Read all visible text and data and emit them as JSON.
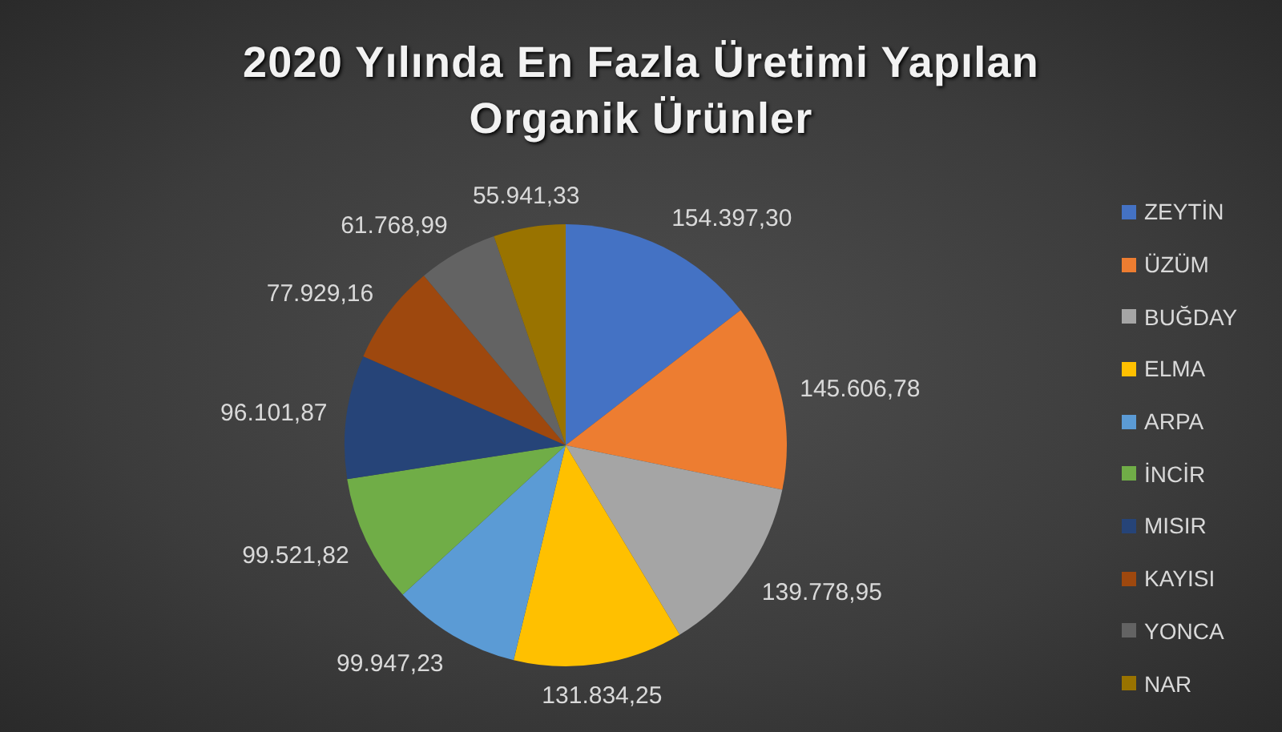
{
  "chart_data": {
    "type": "pie",
    "title": "2020 Yılında En Fazla Üretimi Yapılan Organik Ürünler",
    "categories": [
      "ZEYTİN",
      "ÜZÜM",
      "BUĞDAY",
      "ELMA",
      "ARPA",
      "İNCİR",
      "MISIR",
      "KAYISI",
      "YONCA",
      "NAR"
    ],
    "values": [
      154397.3,
      145606.78,
      139778.95,
      131834.25,
      99947.23,
      99521.82,
      96101.87,
      77929.16,
      61768.99,
      55941.33
    ],
    "colors": [
      "#4472c4",
      "#ed7d31",
      "#a5a5a5",
      "#ffc000",
      "#5b9bd5",
      "#70ad47",
      "#264478",
      "#9e480e",
      "#636363",
      "#997300"
    ],
    "value_labels": [
      "154.397,30",
      "145.606,78",
      "139.778,95",
      "131.834,25",
      "99.947,23",
      "99.521,82",
      "96.101,87",
      "77.929,16",
      "61.768,99",
      "55.941,33"
    ],
    "legend": "right"
  }
}
